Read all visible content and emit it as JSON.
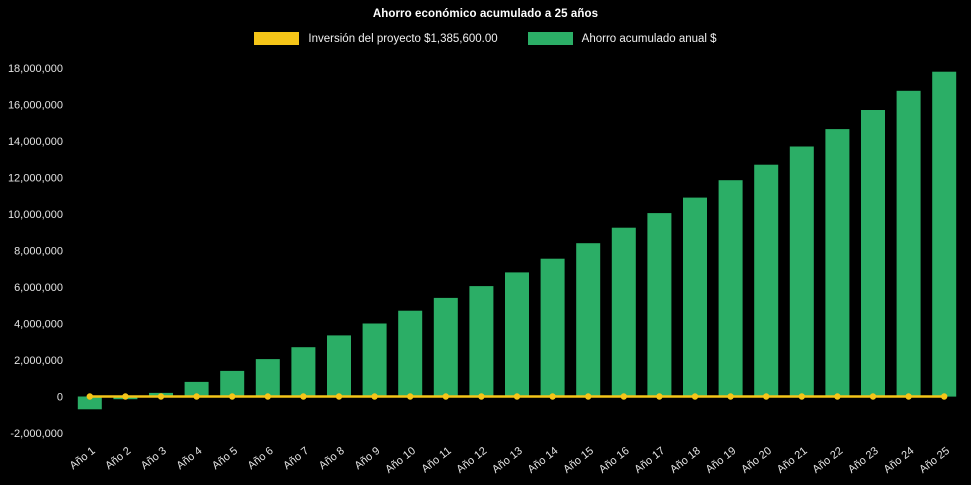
{
  "title": "Ahorro económico acumulado a 25 años",
  "legend": [
    {
      "label": "Inversión del proyecto $1,385,600.00",
      "color": "#f5c518"
    },
    {
      "label": "Ahorro acumulado anual $",
      "color": "#2bae66"
    }
  ],
  "colors": {
    "background": "#000000",
    "text": "#e3e3e3",
    "title_text": "#ffffff",
    "bar_green": "#2bae66",
    "line_yellow": "#f5c518"
  },
  "chart_data": {
    "type": "bar",
    "title": "Ahorro económico acumulado a 25 años",
    "categories": [
      "Año 1",
      "Año 2",
      "Año 3",
      "Año 4",
      "Año 5",
      "Año 6",
      "Año 7",
      "Año 8",
      "Año 9",
      "Año 10",
      "Año 11",
      "Año 12",
      "Año 13",
      "Año 14",
      "Año 15",
      "Año 16",
      "Año 17",
      "Año 18",
      "Año 19",
      "Año 20",
      "Año 21",
      "Año 22",
      "Año 23",
      "Año 24",
      "Año 25"
    ],
    "series": [
      {
        "name": "Inversión del proyecto $1,385,600.00",
        "type": "line",
        "color": "#f5c518",
        "investment_amount_label": "$1,385,600.00",
        "values": [
          0,
          0,
          0,
          0,
          0,
          0,
          0,
          0,
          0,
          0,
          0,
          0,
          0,
          0,
          0,
          0,
          0,
          0,
          0,
          0,
          0,
          0,
          0,
          0,
          0
        ]
      },
      {
        "name": "Ahorro acumulado anual $",
        "type": "bar",
        "color": "#2bae66",
        "values": [
          -700000,
          -150000,
          200000,
          800000,
          1400000,
          2050000,
          2700000,
          3350000,
          4000000,
          4700000,
          5400000,
          6050000,
          6800000,
          7550000,
          8400000,
          9250000,
          10050000,
          10900000,
          11850000,
          12700000,
          13700000,
          14650000,
          15700000,
          16750000,
          17800000
        ]
      }
    ],
    "xlabel": "",
    "ylabel": "",
    "ylim": [
      -2000000,
      18000000
    ],
    "ytick_step": 2000000,
    "ytick_labels": [
      "-2,000,000",
      "0",
      "2,000,000",
      "4,000,000",
      "6,000,000",
      "8,000,000",
      "10,000,000",
      "12,000,000",
      "14,000,000",
      "16,000,000",
      "18,000,000"
    ],
    "grid": false,
    "legend_position": "top"
  }
}
